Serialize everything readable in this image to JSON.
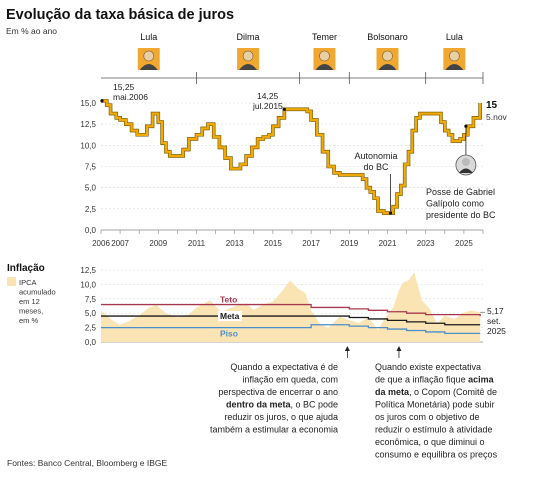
{
  "title": "Evolução da taxa básica de juros",
  "subtitle": "Em % ao ano",
  "presidents": [
    {
      "name": "Lula",
      "from": 2003.0,
      "to": 2011.0
    },
    {
      "name": "Dilma",
      "from": 2011.0,
      "to": 2016.4
    },
    {
      "name": "Temer",
      "from": 2016.4,
      "to": 2019.0
    },
    {
      "name": "Bolsonaro",
      "from": 2019.0,
      "to": 2023.0
    },
    {
      "name": "Lula",
      "from": 2023.0,
      "to": 2026.0
    }
  ],
  "colors": {
    "selic": "#f2a900",
    "selic_edge": "#6b5200",
    "inflation_area": "#fbe4b4",
    "teto": "#a6384e",
    "meta": "#1a1a1a",
    "piso": "#4a8ec9",
    "axis": "#888888",
    "icon_bg": "#f0a830"
  },
  "chart_data": [
    {
      "type": "line",
      "title": "Evolução da taxa básica de juros",
      "ylabel": "Em % ao ano",
      "ylim": [
        0,
        15
      ],
      "yticks": [
        "0,0",
        "2,5",
        "5,0",
        "7,5",
        "10,0",
        "12,5",
        "15,0"
      ],
      "xlim": [
        2006,
        2026
      ],
      "xticks": [
        "2006",
        "2007",
        "2009",
        "2011",
        "2013",
        "2015",
        "2017",
        "2019",
        "2021",
        "2023",
        "2025"
      ],
      "series": [
        {
          "values_x": [
            2006.0,
            2006.3,
            2006.5,
            2006.8,
            2007.0,
            2007.3,
            2007.6,
            2007.9,
            2008.2,
            2008.4,
            2008.7,
            2009.0,
            2009.2,
            2009.4,
            2009.6,
            2010.0,
            2010.3,
            2010.6,
            2011.0,
            2011.3,
            2011.6,
            2011.9,
            2012.2,
            2012.5,
            2012.8,
            2013.0,
            2013.3,
            2013.6,
            2013.9,
            2014.2,
            2014.5,
            2014.8,
            2015.0,
            2015.3,
            2015.6,
            2016.0,
            2016.5,
            2016.8,
            2017.0,
            2017.3,
            2017.6,
            2017.9,
            2018.2,
            2018.5,
            2019.0,
            2019.5,
            2019.7,
            2019.9,
            2020.1,
            2020.3,
            2020.5,
            2020.8,
            2021.0,
            2021.3,
            2021.5,
            2021.7,
            2021.9,
            2022.1,
            2022.3,
            2022.5,
            2022.7,
            2023.0,
            2023.6,
            2023.8,
            2024.0,
            2024.2,
            2024.4,
            2024.6,
            2024.8,
            2025.0,
            2025.2,
            2025.5,
            2025.85
          ],
          "values": [
            15.25,
            14.75,
            13.75,
            13.25,
            13.0,
            12.5,
            11.75,
            11.25,
            11.25,
            12.25,
            13.75,
            12.75,
            10.25,
            9.25,
            8.75,
            8.75,
            9.5,
            10.75,
            11.25,
            12.0,
            12.5,
            11.0,
            9.75,
            8.5,
            7.25,
            7.25,
            7.75,
            8.75,
            9.75,
            10.75,
            11.0,
            11.25,
            12.25,
            13.25,
            14.25,
            14.25,
            14.25,
            14.0,
            13.0,
            11.25,
            9.25,
            7.5,
            6.75,
            6.5,
            6.5,
            6.5,
            6.0,
            5.0,
            4.5,
            3.75,
            2.25,
            2.0,
            2.0,
            2.75,
            4.25,
            5.25,
            7.75,
            9.25,
            11.75,
            13.25,
            13.75,
            13.75,
            13.75,
            12.75,
            11.75,
            11.25,
            10.5,
            10.5,
            10.75,
            11.25,
            12.25,
            13.25,
            15.0
          ]
        }
      ],
      "annotations": [
        {
          "text": [
            "15,25",
            "mai.2006"
          ],
          "at": [
            2006.0,
            15.25
          ]
        },
        {
          "text": [
            "14,25",
            "jul.2015"
          ],
          "at": [
            2015.6,
            14.25
          ]
        },
        {
          "text": [
            "Autonomia",
            "do BC"
          ],
          "at": [
            2021.0,
            2.0
          ]
        },
        {
          "text": [
            "Posse de Gabriel",
            "Galípolo como",
            "presidente do BC"
          ],
          "at": [
            2025.0,
            12.25
          ]
        }
      ],
      "end_label": {
        "value": "15",
        "date": "5.nov"
      }
    },
    {
      "type": "area",
      "title": "Inflação",
      "ylabel": "IPCA acumulado em 12 meses, em %",
      "ylim": [
        0,
        12.5
      ],
      "yticks": [
        "0,0",
        "2,5",
        "5,0",
        "7,5",
        "10,0",
        "12,5"
      ],
      "series": [
        {
          "name": "IPCA",
          "values_x": [
            2006.0,
            2006.5,
            2007.0,
            2007.5,
            2008.0,
            2008.5,
            2008.9,
            2009.4,
            2010.0,
            2010.6,
            2011.0,
            2011.7,
            2012.3,
            2013.0,
            2013.6,
            2014.0,
            2014.5,
            2015.0,
            2015.5,
            2015.9,
            2016.3,
            2016.7,
            2017.0,
            2017.5,
            2017.9,
            2018.5,
            2019.0,
            2019.5,
            2020.0,
            2020.5,
            2020.9,
            2021.3,
            2021.6,
            2021.8,
            2022.1,
            2022.4,
            2022.8,
            2023.2,
            2023.6,
            2024.0,
            2024.5,
            2025.0,
            2025.4,
            2025.85
          ],
          "values": [
            5.5,
            4.0,
            3.0,
            3.7,
            4.6,
            6.0,
            6.4,
            5.0,
            4.3,
            4.8,
            6.0,
            7.2,
            5.2,
            6.2,
            6.7,
            5.6,
            6.5,
            7.0,
            8.9,
            10.7,
            9.3,
            8.5,
            5.5,
            3.0,
            2.5,
            4.4,
            3.8,
            3.3,
            4.3,
            2.1,
            4.3,
            6.0,
            9.0,
            10.3,
            10.7,
            12.1,
            7.2,
            5.8,
            3.2,
            4.6,
            4.0,
            5.1,
            5.5,
            5.17
          ]
        },
        {
          "name": "Teto",
          "values_x": [
            2006.0,
            2016.9,
            2017.0,
            2018.9,
            2019.0,
            2019.9,
            2020.0,
            2020.9,
            2021.0,
            2021.9,
            2022.0,
            2022.9,
            2023.0,
            2025.85
          ],
          "values": [
            6.5,
            6.5,
            6.0,
            6.0,
            5.75,
            5.75,
            5.5,
            5.5,
            5.25,
            5.25,
            5.0,
            5.0,
            4.75,
            4.5
          ]
        },
        {
          "name": "Meta",
          "values_x": [
            2006.0,
            2018.9,
            2019.0,
            2019.9,
            2020.0,
            2020.9,
            2021.0,
            2021.9,
            2022.0,
            2022.9,
            2023.0,
            2023.9,
            2024.0,
            2025.85
          ],
          "values": [
            4.5,
            4.5,
            4.25,
            4.25,
            4.0,
            4.0,
            3.75,
            3.75,
            3.5,
            3.5,
            3.25,
            3.25,
            3.0,
            3.0
          ]
        },
        {
          "name": "Piso",
          "values_x": [
            2006.0,
            2016.9,
            2017.0,
            2018.9,
            2019.0,
            2019.9,
            2020.0,
            2020.9,
            2021.0,
            2021.9,
            2022.0,
            2022.9,
            2023.0,
            2023.9,
            2024.0,
            2025.85
          ],
          "values": [
            2.5,
            2.5,
            3.0,
            3.0,
            2.75,
            2.75,
            2.5,
            2.5,
            2.25,
            2.25,
            2.0,
            2.0,
            1.75,
            1.75,
            1.5,
            1.5
          ]
        }
      ],
      "line_labels": {
        "teto": "Teto",
        "meta": "Meta",
        "piso": "Piso"
      },
      "end_label": {
        "value": "5,17",
        "date": "set.",
        "year": "2025"
      }
    }
  ],
  "inflation_panel": {
    "title": "Inflação",
    "legend": [
      "IPCA",
      "acumulado",
      "em 12",
      "meses,",
      "em %"
    ]
  },
  "notes": [
    {
      "lines": [
        [
          {
            "t": "Quando a expectativa é de"
          }
        ],
        [
          {
            "t": "inflação em queda, com"
          }
        ],
        [
          {
            "t": "perspectiva de encerrar o ano"
          }
        ],
        [
          {
            "t": "dentro da meta",
            "b": true
          },
          {
            "t": ", o BC pode"
          }
        ],
        [
          {
            "t": "reduzir os juros, o que ajuda"
          }
        ],
        [
          {
            "t": "também a estimular a economia"
          }
        ]
      ]
    },
    {
      "lines": [
        [
          {
            "t": "Quando existe expectativa"
          }
        ],
        [
          {
            "t": "de que a inflação fique "
          },
          {
            "t": "acima",
            "b": true
          }
        ],
        [
          {
            "t": "da meta",
            "b": true
          },
          {
            "t": ", o Copom (Comitê de"
          }
        ],
        [
          {
            "t": "Política Monetária) pode subir"
          }
        ],
        [
          {
            "t": "os juros com o objetivo de"
          }
        ],
        [
          {
            "t": "reduzir o estímulo à atividade"
          }
        ],
        [
          {
            "t": "econômica, o que diminui o"
          }
        ],
        [
          {
            "t": "consumo e equilibra os preços"
          }
        ]
      ]
    }
  ],
  "source": "Fontes: Banco Central, Bloomberg e IBGE"
}
